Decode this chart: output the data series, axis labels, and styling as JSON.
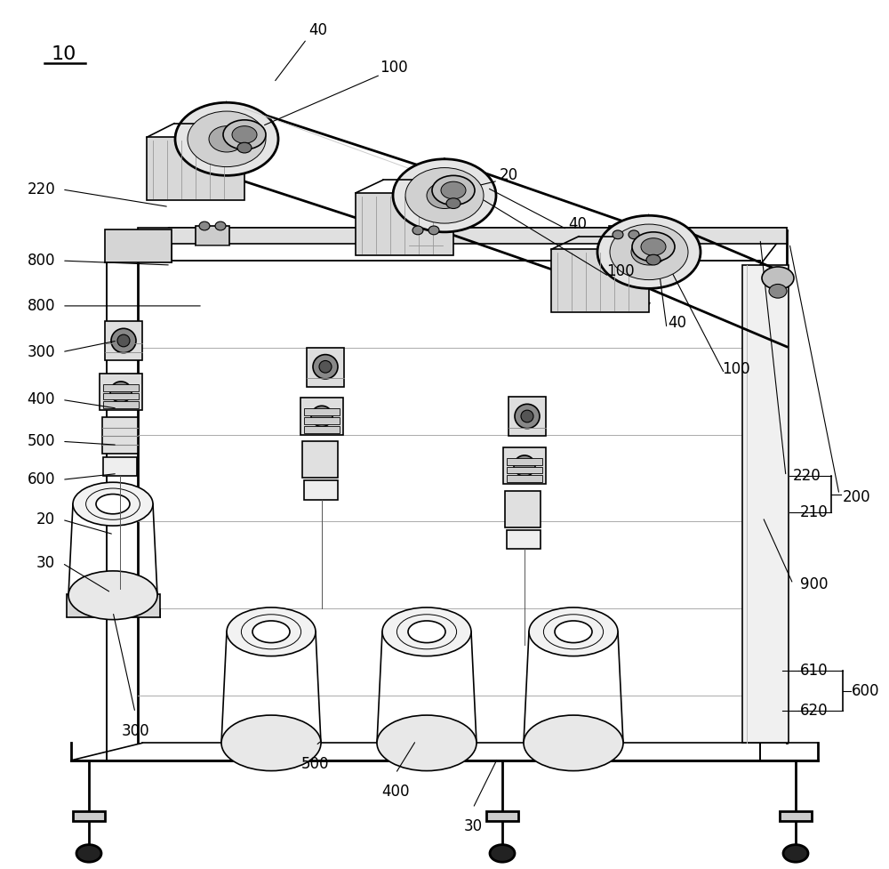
{
  "bg_color": "#ffffff",
  "line_color": "#000000",
  "fig_width": 10.0,
  "fig_height": 9.77,
  "dpi": 100
}
